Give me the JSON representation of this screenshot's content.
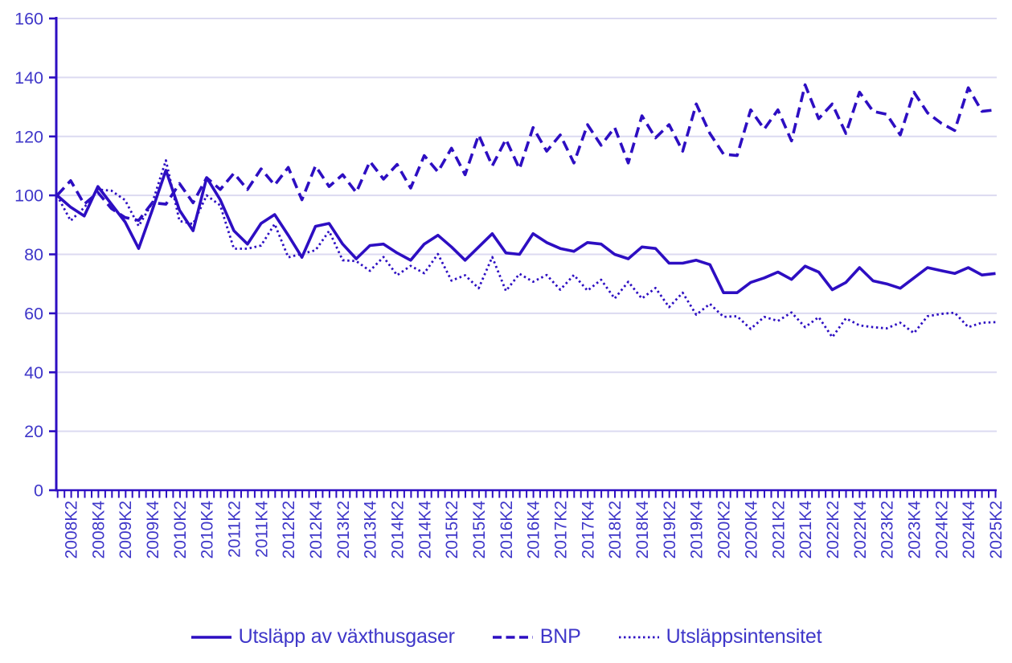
{
  "chart_data": {
    "type": "line",
    "title": "",
    "xlabel": "",
    "ylabel": "",
    "axis": {
      "y_min": 0,
      "y_max": 160,
      "y_step": 20,
      "grid": "horizontal",
      "x_label_every": 2,
      "x_label_offset": 1
    },
    "y_tick_labels": [
      "0",
      "20",
      "40",
      "60",
      "80",
      "100",
      "120",
      "140",
      "160"
    ],
    "x_tick_labels_shown": [
      "2008K2",
      "2008K4",
      "2009K2",
      "2009K4",
      "2010K2",
      "2010K4",
      "2011K2",
      "2011K4",
      "2012K2",
      "2012K4",
      "2013K2",
      "2013K4",
      "2014K2",
      "2014K4",
      "2015K2",
      "2015K4",
      "2016K2",
      "2016K4",
      "2017K2",
      "2017K4",
      "2018K2",
      "2018K4",
      "2019K2",
      "2019K4",
      "2020K2",
      "2020K4",
      "2021K2",
      "2021K4",
      "2022K2",
      "2022K4",
      "2023K2",
      "2023K4",
      "2024K2",
      "2024K4",
      "2025K2"
    ],
    "x": [
      "2008K1",
      "2008K2",
      "2008K3",
      "2008K4",
      "2009K1",
      "2009K2",
      "2009K3",
      "2009K4",
      "2010K1",
      "2010K2",
      "2010K3",
      "2010K4",
      "2011K1",
      "2011K2",
      "2011K3",
      "2011K4",
      "2012K1",
      "2012K2",
      "2012K3",
      "2012K4",
      "2013K1",
      "2013K2",
      "2013K3",
      "2013K4",
      "2014K1",
      "2014K2",
      "2014K3",
      "2014K4",
      "2015K1",
      "2015K2",
      "2015K3",
      "2015K4",
      "2016K1",
      "2016K2",
      "2016K3",
      "2016K4",
      "2017K1",
      "2017K2",
      "2017K3",
      "2017K4",
      "2018K1",
      "2018K2",
      "2018K3",
      "2018K4",
      "2019K1",
      "2019K2",
      "2019K3",
      "2019K4",
      "2020K1",
      "2020K2",
      "2020K3",
      "2020K4",
      "2021K1",
      "2021K2",
      "2021K3",
      "2021K4",
      "2022K1",
      "2022K2",
      "2022K3",
      "2022K4",
      "2023K1",
      "2023K2",
      "2023K3",
      "2023K4",
      "2024K1",
      "2024K2",
      "2024K3",
      "2024K4",
      "2025K1",
      "2025K2"
    ],
    "series": [
      {
        "name": "Utsläpp av växthusgaser",
        "style": "solid",
        "values": [
          100,
          96,
          93,
          103,
          97,
          91,
          82,
          95,
          108.5,
          95,
          88,
          106,
          98.5,
          88,
          83.5,
          90.5,
          93.5,
          86.5,
          79,
          89.5,
          90.5,
          83.5,
          78.5,
          83,
          83.5,
          80.5,
          78,
          83.5,
          86.5,
          82.5,
          78,
          82.5,
          87,
          80.5,
          80,
          87,
          84,
          82,
          81,
          84,
          83.5,
          80,
          78.5,
          82.5,
          82,
          77,
          77,
          78,
          76.5,
          67,
          67,
          70.5,
          72,
          74,
          71.5,
          76,
          74,
          68,
          70.5,
          75.5,
          71,
          70,
          68.5,
          72,
          75.5,
          74.5,
          73.5,
          75.5,
          73,
          73.5
        ]
      },
      {
        "name": "BNP",
        "style": "dashed",
        "values": [
          100,
          105,
          97,
          101,
          95.5,
          92.5,
          91.5,
          97.5,
          97,
          104,
          97.5,
          106,
          102,
          107.5,
          102,
          109,
          103.5,
          109.5,
          98.5,
          110,
          103,
          107,
          101,
          111.5,
          105.5,
          110.5,
          102.5,
          113.5,
          108,
          116,
          107,
          120.5,
          110,
          119,
          109,
          123,
          115,
          120.5,
          111,
          124,
          117,
          123,
          111,
          127,
          119.5,
          124,
          115,
          131,
          121,
          114,
          113.5,
          129,
          122.5,
          129,
          118.5,
          137.5,
          126,
          131,
          121,
          135,
          128.5,
          127.5,
          120.5,
          135,
          128,
          124.5,
          122,
          136.5,
          128.5,
          129
        ]
      },
      {
        "name": "Utsläppsintensitet",
        "style": "dotted",
        "values": [
          100,
          91.4,
          95.9,
          102,
          101.6,
          98.4,
          89.6,
          97.4,
          111.9,
          91.3,
          90.3,
          100,
          96.6,
          81.9,
          81.9,
          83,
          90.3,
          79,
          80.2,
          81.4,
          87.9,
          78,
          77.7,
          74.4,
          79.1,
          72.9,
          76.1,
          73.6,
          80.1,
          71.1,
          72.9,
          68.5,
          79.1,
          67.6,
          73.4,
          70.7,
          73,
          68,
          73,
          67.7,
          71.4,
          65,
          70.7,
          65,
          68.6,
          62.1,
          67,
          59.5,
          63.2,
          58.8,
          59,
          54.7,
          58.8,
          57.4,
          60.3,
          55.3,
          58.7,
          51.9,
          58.3,
          55.9,
          55.3,
          54.9,
          56.8,
          53.3,
          59,
          59.8,
          60.2,
          55.3,
          56.8,
          57
        ]
      }
    ],
    "legend_position": "bottom-center",
    "colors": {
      "line": "#2d0ec2",
      "text": "#3f37c9",
      "grid": "#dcdaf1",
      "background": "#ffffff"
    }
  }
}
